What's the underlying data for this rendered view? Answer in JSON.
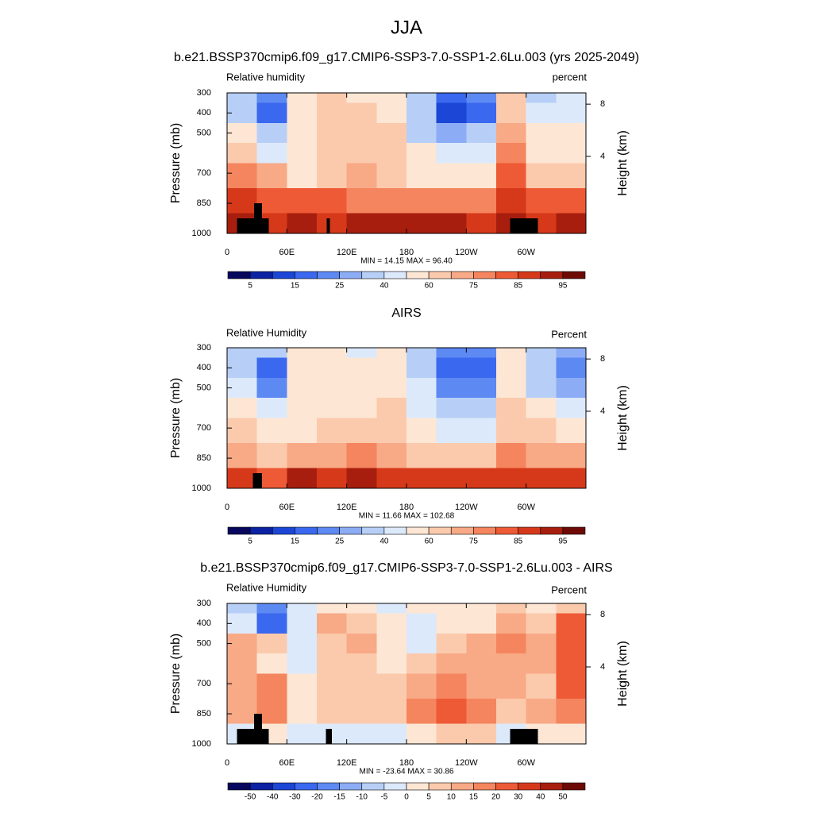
{
  "title": "JJA",
  "chart_data": [
    {
      "type": "contour",
      "title": "b.e21.BSSP370cmip6.f09_g17.CMIP6-SSP3-7.0-SSP1-2.6Lu.003 (yrs 2025-2049)",
      "left_string": "Relative humidity",
      "right_string": "percent",
      "ylabel": "Pressure (mb)",
      "y2label": "Height (km)",
      "stats": "MIN =  14.15  MAX =  96.40",
      "xlim": [
        0,
        360
      ],
      "ylim": [
        1000,
        300
      ],
      "xticks": [
        0,
        {
          "value": 60,
          "label": "60E"
        },
        {
          "value": 120,
          "label": "120E"
        },
        180,
        {
          "value": 240,
          "label": "120W"
        },
        {
          "value": 300,
          "label": "60W"
        }
      ],
      "yticks": [
        300,
        400,
        500,
        700,
        850,
        1000
      ],
      "y2ticks": [
        4,
        8
      ],
      "x": [
        15,
        45,
        75,
        105,
        135,
        165,
        195,
        225,
        255,
        285,
        315,
        345
      ],
      "y": [
        300,
        400,
        500,
        600,
        700,
        850,
        950
      ],
      "z": [
        [
          30,
          20,
          55,
          60,
          58,
          50,
          35,
          15,
          20,
          60,
          35,
          40
        ],
        [
          35,
          15,
          55,
          62,
          60,
          55,
          30,
          12,
          18,
          62,
          40,
          45
        ],
        [
          55,
          30,
          50,
          60,
          65,
          60,
          35,
          25,
          35,
          72,
          50,
          55
        ],
        [
          65,
          45,
          52,
          62,
          68,
          62,
          50,
          42,
          45,
          75,
          58,
          58
        ],
        [
          75,
          72,
          58,
          65,
          70,
          65,
          58,
          55,
          58,
          80,
          65,
          65
        ],
        [
          85,
          82,
          82,
          80,
          78,
          78,
          75,
          75,
          78,
          85,
          80,
          82
        ],
        [
          90,
          88,
          90,
          88,
          90,
          90,
          90,
          92,
          88,
          90,
          88,
          92
        ]
      ],
      "terrain": [
        {
          "lon": [
            10,
            42
          ],
          "p": 925
        },
        {
          "lon": [
            27,
            35
          ],
          "p": 850
        },
        {
          "lon": [
            100,
            103
          ],
          "p": 925
        },
        {
          "lon": [
            284,
            312
          ],
          "p": 925
        }
      ],
      "colorbar": {
        "levels": [
          5,
          10,
          15,
          20,
          25,
          30,
          40,
          50,
          60,
          70,
          75,
          80,
          85,
          90,
          95
        ],
        "label_stride": 2,
        "colors": [
          "#07075e",
          "#0c22a3",
          "#1b46d6",
          "#3a68ee",
          "#5d89f3",
          "#8cadf5",
          "#b7cff6",
          "#dce9fb",
          "#fde6d4",
          "#fbcaad",
          "#f8a986",
          "#f4855e",
          "#ee5a36",
          "#d6391a",
          "#a81e0e",
          "#6e0a06"
        ]
      }
    },
    {
      "type": "contour",
      "title": "AIRS",
      "left_string": "Relative Humidity",
      "right_string": "Percent",
      "ylabel": "Pressure (mb)",
      "y2label": "Height (km)",
      "stats": "MIN =  11.66  MAX = 102.68",
      "xlim": [
        0,
        360
      ],
      "ylim": [
        1000,
        300
      ],
      "xticks": [
        0,
        {
          "value": 60,
          "label": "60E"
        },
        {
          "value": 120,
          "label": "120E"
        },
        180,
        {
          "value": 240,
          "label": "120W"
        },
        {
          "value": 300,
          "label": "60W"
        }
      ],
      "yticks": [
        300,
        400,
        500,
        700,
        850,
        1000
      ],
      "y2ticks": [
        4,
        8
      ],
      "x": [
        15,
        45,
        75,
        105,
        135,
        165,
        195,
        225,
        255,
        285,
        315,
        345
      ],
      "y": [
        300,
        400,
        500,
        600,
        700,
        850,
        950
      ],
      "z": [
        [
          30,
          30,
          52,
          55,
          45,
          55,
          35,
          20,
          20,
          55,
          30,
          25
        ],
        [
          35,
          15,
          55,
          52,
          55,
          55,
          35,
          15,
          15,
          55,
          30,
          20
        ],
        [
          45,
          22,
          55,
          55,
          55,
          58,
          40,
          20,
          22,
          55,
          35,
          25
        ],
        [
          55,
          42,
          55,
          58,
          58,
          60,
          42,
          32,
          35,
          62,
          50,
          45
        ],
        [
          62,
          55,
          58,
          60,
          62,
          62,
          50,
          42,
          48,
          68,
          60,
          58
        ],
        [
          72,
          68,
          70,
          72,
          75,
          72,
          62,
          60,
          62,
          75,
          72,
          70
        ],
        [
          88,
          80,
          90,
          88,
          92,
          88,
          85,
          85,
          88,
          85,
          88,
          88
        ]
      ],
      "terrain": [
        {
          "lon": [
            26,
            35
          ],
          "p": 925
        }
      ],
      "colorbar": {
        "levels": [
          5,
          10,
          15,
          20,
          25,
          30,
          40,
          50,
          60,
          70,
          75,
          80,
          85,
          90,
          95
        ],
        "label_stride": 2,
        "colors": [
          "#07075e",
          "#0c22a3",
          "#1b46d6",
          "#3a68ee",
          "#5d89f3",
          "#8cadf5",
          "#b7cff6",
          "#dce9fb",
          "#fde6d4",
          "#fbcaad",
          "#f8a986",
          "#f4855e",
          "#ee5a36",
          "#d6391a",
          "#a81e0e",
          "#6e0a06"
        ]
      }
    },
    {
      "type": "contour",
      "title": "b.e21.BSSP370cmip6.f09_g17.CMIP6-SSP3-7.0-SSP1-2.6Lu.003 - AIRS",
      "left_string": "Relative Humidity",
      "right_string": "Percent",
      "ylabel": "Pressure (mb)",
      "y2label": "Height (km)",
      "stats": "MIN = -23.64  MAX =  30.86",
      "xlim": [
        0,
        360
      ],
      "ylim": [
        1000,
        300
      ],
      "xticks": [
        0,
        {
          "value": 60,
          "label": "60E"
        },
        {
          "value": 120,
          "label": "120E"
        },
        180,
        {
          "value": 240,
          "label": "120W"
        },
        {
          "value": 300,
          "label": "60W"
        }
      ],
      "yticks": [
        300,
        400,
        500,
        700,
        850,
        1000
      ],
      "y2ticks": [
        4,
        8
      ],
      "x": [
        15,
        45,
        75,
        105,
        135,
        165,
        195,
        225,
        255,
        285,
        315,
        345
      ],
      "y": [
        300,
        400,
        500,
        600,
        700,
        850,
        950
      ],
      "z": [
        [
          -8,
          -20,
          -5,
          2,
          3,
          -3,
          3,
          0,
          0,
          8,
          3,
          8
        ],
        [
          -5,
          -22,
          -3,
          10,
          5,
          0,
          -2,
          2,
          3,
          10,
          8,
          22
        ],
        [
          12,
          5,
          -3,
          8,
          10,
          3,
          -3,
          5,
          12,
          15,
          12,
          22
        ],
        [
          10,
          3,
          -3,
          6,
          8,
          3,
          8,
          12,
          12,
          12,
          10,
          22
        ],
        [
          12,
          18,
          2,
          5,
          8,
          5,
          10,
          15,
          12,
          10,
          8,
          22
        ],
        [
          12,
          17,
          3,
          8,
          5,
          5,
          15,
          22,
          18,
          8,
          10,
          15
        ],
        [
          -3,
          3,
          -3,
          -5,
          -5,
          -3,
          3,
          5,
          5,
          -3,
          0,
          2
        ]
      ],
      "terrain": [
        {
          "lon": [
            10,
            42
          ],
          "p": 925
        },
        {
          "lon": [
            27,
            35
          ],
          "p": 850
        },
        {
          "lon": [
            99,
            105
          ],
          "p": 925
        },
        {
          "lon": [
            284,
            312
          ],
          "p": 925
        }
      ],
      "colorbar": {
        "levels": [
          -50,
          -40,
          -30,
          -20,
          -15,
          -10,
          -5,
          0,
          5,
          10,
          15,
          20,
          30,
          40,
          50
        ],
        "label_stride": 1,
        "colors": [
          "#07075e",
          "#0c22a3",
          "#1b46d6",
          "#3a68ee",
          "#5d89f3",
          "#8cadf5",
          "#b7cff6",
          "#dce9fb",
          "#fde6d4",
          "#fbcaad",
          "#f8a986",
          "#f4855e",
          "#ee5a36",
          "#d6391a",
          "#a81e0e",
          "#6e0a06"
        ]
      }
    }
  ]
}
